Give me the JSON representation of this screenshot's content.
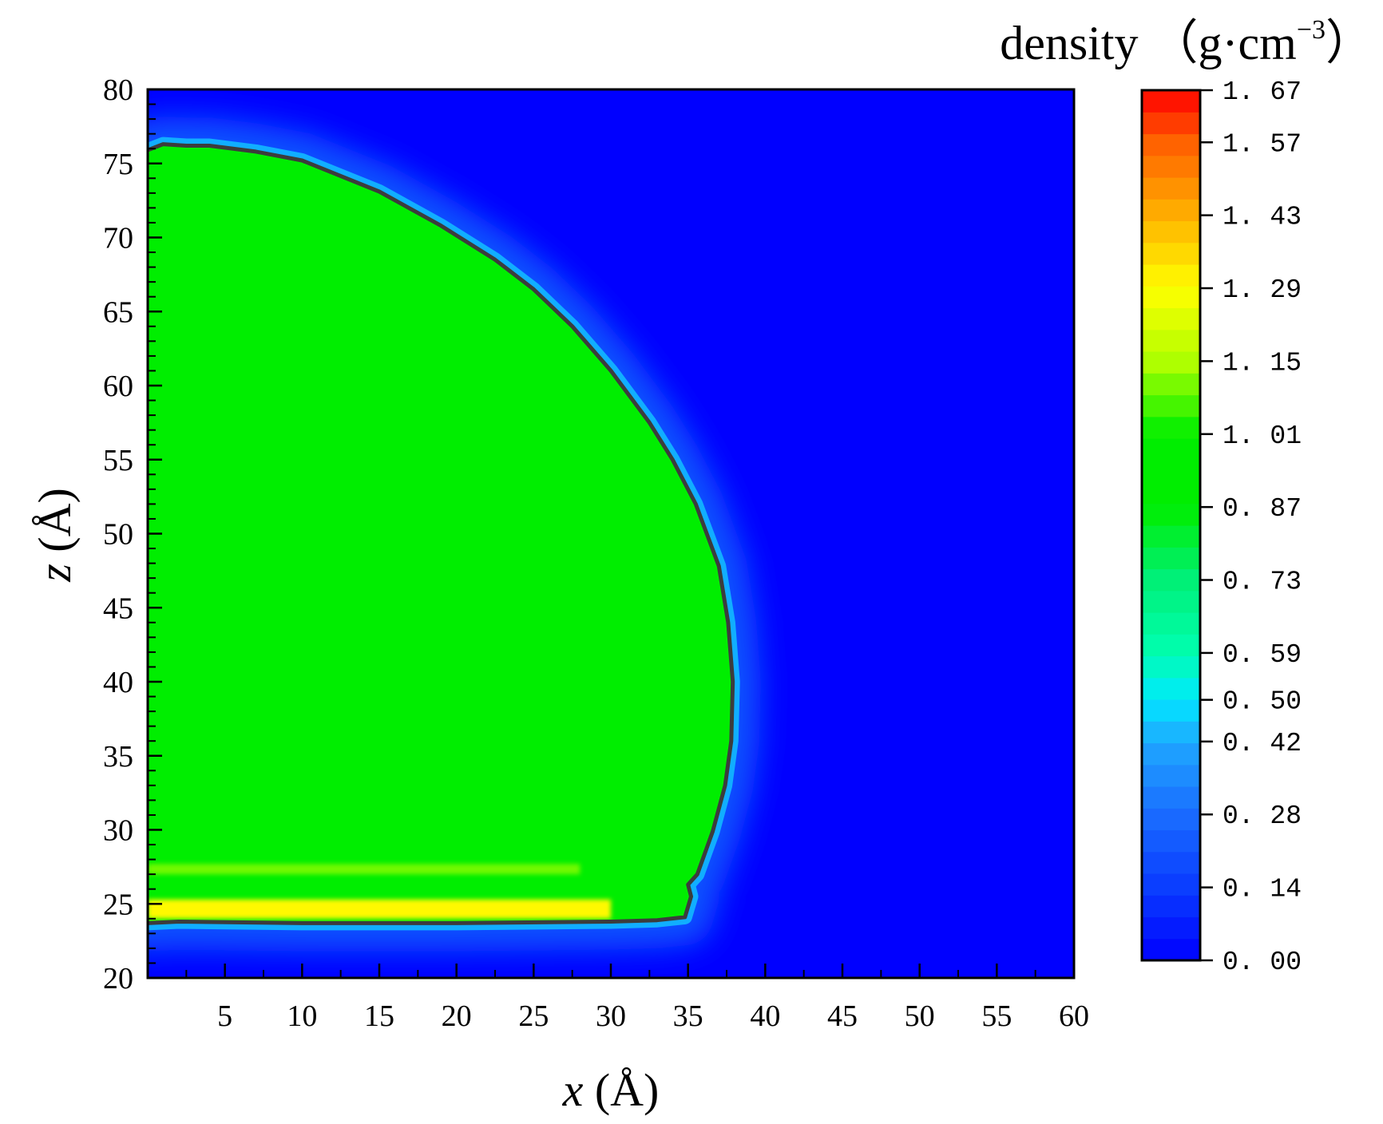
{
  "chart_data": {
    "type": "heatmap",
    "subtype": "density contour map with isoline",
    "xlabel_var": "x",
    "xlabel_unit": "(Å)",
    "ylabel_var": "z",
    "ylabel_unit": "(Å)",
    "xlim": [
      0,
      60
    ],
    "ylim": [
      20,
      80
    ],
    "x_ticks": [
      5,
      10,
      15,
      20,
      25,
      30,
      35,
      40,
      45,
      50,
      55,
      60
    ],
    "y_ticks": [
      20,
      25,
      30,
      35,
      40,
      45,
      50,
      55,
      60,
      65,
      70,
      75,
      80
    ],
    "x_ticks_text": [
      "5",
      "10",
      "15",
      "20",
      "25",
      "30",
      "35",
      "40",
      "45",
      "50",
      "55",
      "60"
    ],
    "y_ticks_text": [
      "20",
      "25",
      "30",
      "35",
      "40",
      "45",
      "50",
      "55",
      "60",
      "65",
      "70",
      "75",
      "80"
    ],
    "colorbar": {
      "title": "density （g·cm",
      "title_sup": "−3",
      "title_close": "）",
      "range": [
        0.0,
        1.67
      ],
      "tick_values": [
        0.0,
        0.14,
        0.28,
        0.42,
        0.5,
        0.59,
        0.73,
        0.87,
        1.01,
        1.15,
        1.29,
        1.43,
        1.57,
        1.67
      ],
      "tick_labels": [
        "0. 00",
        "0. 14",
        "0. 28",
        "0. 42",
        "0. 50",
        "0. 59",
        "0. 73",
        "0. 87",
        "1. 01",
        "1. 15",
        "1. 29",
        "1. 43",
        "1. 57",
        "1. 67"
      ],
      "colors": [
        "#0000ff",
        "#0a3cff",
        "#1a6cff",
        "#1fa8ff",
        "#00e8ff",
        "#00ffb0",
        "#00f078",
        "#00ee00",
        "#00ee00",
        "#b0ff00",
        "#ffff00",
        "#ffb000",
        "#ff6000",
        "#ff0000"
      ]
    },
    "background_color": "#0000ff",
    "droplet_color": "#00ee00",
    "contour_color": "#3c3c3c",
    "droplet_boundary": [
      {
        "x": 0.0,
        "z": 23.7
      },
      {
        "x": 2.0,
        "z": 23.8
      },
      {
        "x": 10.0,
        "z": 23.7
      },
      {
        "x": 20.0,
        "z": 23.7
      },
      {
        "x": 30.0,
        "z": 23.8
      },
      {
        "x": 33.0,
        "z": 23.9
      },
      {
        "x": 34.8,
        "z": 24.1
      },
      {
        "x": 35.2,
        "z": 25.5
      },
      {
        "x": 35.0,
        "z": 26.3
      },
      {
        "x": 35.6,
        "z": 27.0
      },
      {
        "x": 36.6,
        "z": 29.9
      },
      {
        "x": 37.4,
        "z": 33.0
      },
      {
        "x": 37.8,
        "z": 36.0
      },
      {
        "x": 37.9,
        "z": 40.0
      },
      {
        "x": 37.6,
        "z": 44.0
      },
      {
        "x": 37.0,
        "z": 47.8
      },
      {
        "x": 35.5,
        "z": 52.0
      },
      {
        "x": 34.0,
        "z": 55.0
      },
      {
        "x": 32.5,
        "z": 57.5
      },
      {
        "x": 30.0,
        "z": 61.0
      },
      {
        "x": 27.5,
        "z": 64.0
      },
      {
        "x": 25.0,
        "z": 66.5
      },
      {
        "x": 22.5,
        "z": 68.5
      },
      {
        "x": 19.0,
        "z": 70.8
      },
      {
        "x": 15.0,
        "z": 73.1
      },
      {
        "x": 10.0,
        "z": 75.2
      },
      {
        "x": 7.0,
        "z": 75.8
      },
      {
        "x": 4.0,
        "z": 76.2
      },
      {
        "x": 2.5,
        "z": 76.2
      },
      {
        "x": 1.0,
        "z": 76.3
      },
      {
        "x": 0.0,
        "z": 75.9
      }
    ],
    "layers": [
      {
        "z_min": 24.0,
        "z_max": 25.3,
        "x_max": 30.0,
        "density": 1.3
      },
      {
        "z_min": 27.0,
        "z_max": 27.7,
        "x_max": 28.0,
        "density": 1.1
      }
    ]
  }
}
